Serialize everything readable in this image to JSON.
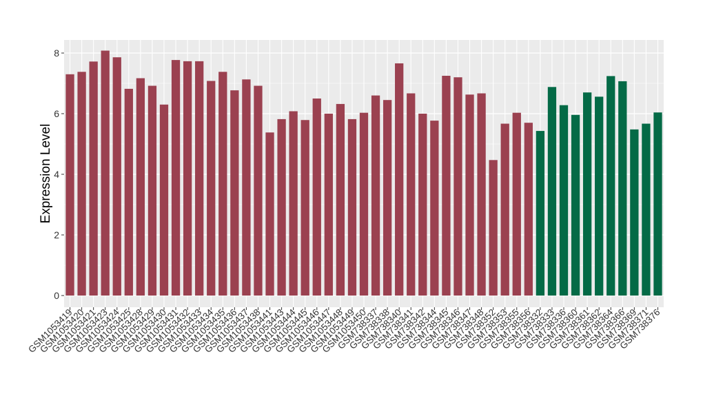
{
  "chart_data": {
    "type": "bar",
    "ylabel": "Expression Level",
    "xlabel": "",
    "ylim": [
      0,
      8.5
    ],
    "yticks": [
      0,
      2,
      4,
      6,
      8
    ],
    "grid": true,
    "colors": {
      "panel": "#ebebeb",
      "grid": "#ffffff",
      "group1": "#9b4150",
      "group2": "#046a46",
      "axis_text": "#333333"
    },
    "categories": [
      "GSM1053419",
      "GSM1053420",
      "GSM1053421",
      "GSM1053423",
      "GSM1053424",
      "GSM1053425",
      "GSM1053428",
      "GSM1053429",
      "GSM1053430",
      "GSM1053431",
      "GSM1053432",
      "GSM1053433",
      "GSM1053434",
      "GSM1053435",
      "GSM1053436",
      "GSM1053437",
      "GSM1053438",
      "GSM1053441",
      "GSM1053443",
      "GSM1053444",
      "GSM1053445",
      "GSM1053446",
      "GSM1053447",
      "GSM1053448",
      "GSM1053449",
      "GSM1053450",
      "GSM738337",
      "GSM738338",
      "GSM738340",
      "GSM738341",
      "GSM738342",
      "GSM738344",
      "GSM738345",
      "GSM738346",
      "GSM738347",
      "GSM738348",
      "GSM738352",
      "GSM738353",
      "GSM738355",
      "GSM738356",
      "GSM738332",
      "GSM738333",
      "GSM738336",
      "GSM738360",
      "GSM738361",
      "GSM738362",
      "GSM738364",
      "GSM738366",
      "GSM738369",
      "GSM738371",
      "GSM738376"
    ],
    "values": [
      7.3,
      7.38,
      7.72,
      8.08,
      7.86,
      6.82,
      7.17,
      6.92,
      6.3,
      7.77,
      7.73,
      7.73,
      7.08,
      7.38,
      6.77,
      7.13,
      6.92,
      5.38,
      5.82,
      6.08,
      5.79,
      6.5,
      6.0,
      6.32,
      5.82,
      6.03,
      6.6,
      6.45,
      7.66,
      6.67,
      6.0,
      5.77,
      7.25,
      7.2,
      6.63,
      6.67,
      4.47,
      5.67,
      6.03,
      5.7,
      5.43,
      6.88,
      6.28,
      5.96,
      6.7,
      6.56,
      7.24,
      7.07,
      5.48,
      5.67,
      6.04
    ],
    "groups": [
      1,
      1,
      1,
      1,
      1,
      1,
      1,
      1,
      1,
      1,
      1,
      1,
      1,
      1,
      1,
      1,
      1,
      1,
      1,
      1,
      1,
      1,
      1,
      1,
      1,
      1,
      1,
      1,
      1,
      1,
      1,
      1,
      1,
      1,
      1,
      1,
      1,
      1,
      1,
      1,
      2,
      2,
      2,
      2,
      2,
      2,
      2,
      2,
      2,
      2,
      2
    ]
  }
}
